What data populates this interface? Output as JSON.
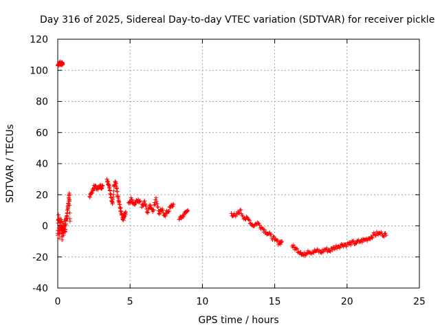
{
  "chart_data": {
    "type": "scatter",
    "title": "Day 316 of 2025, Sidereal Day-to-day VTEC variation (SDTVAR) for receiver pickle",
    "xlabel": "GPS time / hours",
    "ylabel": "SDTVAR / TECUs",
    "xlim": [
      0,
      25
    ],
    "ylim": [
      -40,
      120
    ],
    "xticks": [
      0,
      5,
      10,
      15,
      20,
      25
    ],
    "yticks": [
      -40,
      -20,
      0,
      20,
      40,
      60,
      80,
      100,
      120
    ],
    "grid": true,
    "marker": "+",
    "color": "#ff0000",
    "series": [
      {
        "name": "SDTVAR",
        "segments": [
          {
            "x": [
              0.0,
              0.1,
              0.2,
              0.3,
              0.35
            ],
            "y": [
              103,
              105,
              104,
              105,
              104
            ]
          },
          {
            "x": [
              0.0,
              0.05,
              0.1,
              0.15,
              0.2,
              0.25,
              0.3,
              0.35,
              0.4,
              0.45,
              0.5,
              0.55,
              0.6,
              0.65,
              0.7,
              0.75,
              0.8,
              0.85
            ],
            "y": [
              -6,
              7,
              -8,
              5,
              -3,
              4,
              -9,
              2,
              -6,
              3,
              -4,
              1,
              5,
              8,
              12,
              16,
              21,
              3
            ]
          },
          {
            "x": [
              2.2,
              2.35,
              2.5,
              2.7,
              2.9,
              3.0,
              3.1
            ],
            "y": [
              19,
              21,
              26,
              24,
              26,
              25,
              26
            ]
          },
          {
            "x": [
              3.4,
              3.5,
              3.6,
              3.7,
              3.8,
              3.9,
              4.0,
              4.1,
              4.2,
              4.3,
              4.4,
              4.5,
              4.6,
              4.7
            ],
            "y": [
              30,
              27,
              23,
              18,
              15,
              26,
              28,
              22,
              16,
              12,
              8,
              4,
              6,
              9
            ]
          },
          {
            "x": [
              4.9,
              5.1,
              5.3,
              5.5,
              5.7
            ],
            "y": [
              15,
              17,
              14,
              16,
              16
            ]
          },
          {
            "x": [
              5.8,
              6.0,
              6.2,
              6.4,
              6.6,
              6.8,
              7.0,
              7.2,
              7.4,
              7.6,
              7.8,
              8.0
            ],
            "y": [
              12,
              16,
              9,
              13,
              10,
              18,
              8,
              10,
              7,
              9,
              12,
              14
            ]
          },
          {
            "x": [
              8.4,
              8.6,
              8.8,
              9.0
            ],
            "y": [
              4,
              6,
              8,
              10
            ]
          },
          {
            "x": [
              12.0,
              12.3,
              12.6,
              12.9,
              13.2,
              13.5,
              13.8,
              14.1,
              14.4,
              14.7,
              15.0,
              15.3,
              15.5
            ],
            "y": [
              8,
              6,
              10,
              5,
              4,
              0,
              2,
              -1,
              -4,
              -6,
              -9,
              -11,
              -10
            ]
          },
          {
            "x": [
              16.2,
              16.5,
              16.8,
              17.0,
              17.3,
              17.6,
              17.9,
              18.2,
              18.5,
              18.8,
              19.1,
              19.4,
              19.7,
              20.0,
              20.3,
              20.6,
              20.9,
              21.2,
              21.5,
              21.8,
              22.1,
              22.4,
              22.7
            ],
            "y": [
              -13,
              -15,
              -17,
              -19,
              -16,
              -17,
              -16,
              -17,
              -15,
              -16,
              -14,
              -13,
              -12,
              -12,
              -11,
              -11,
              -10,
              -9,
              -8,
              -6,
              -5,
              -5,
              -6
            ]
          }
        ]
      }
    ]
  }
}
